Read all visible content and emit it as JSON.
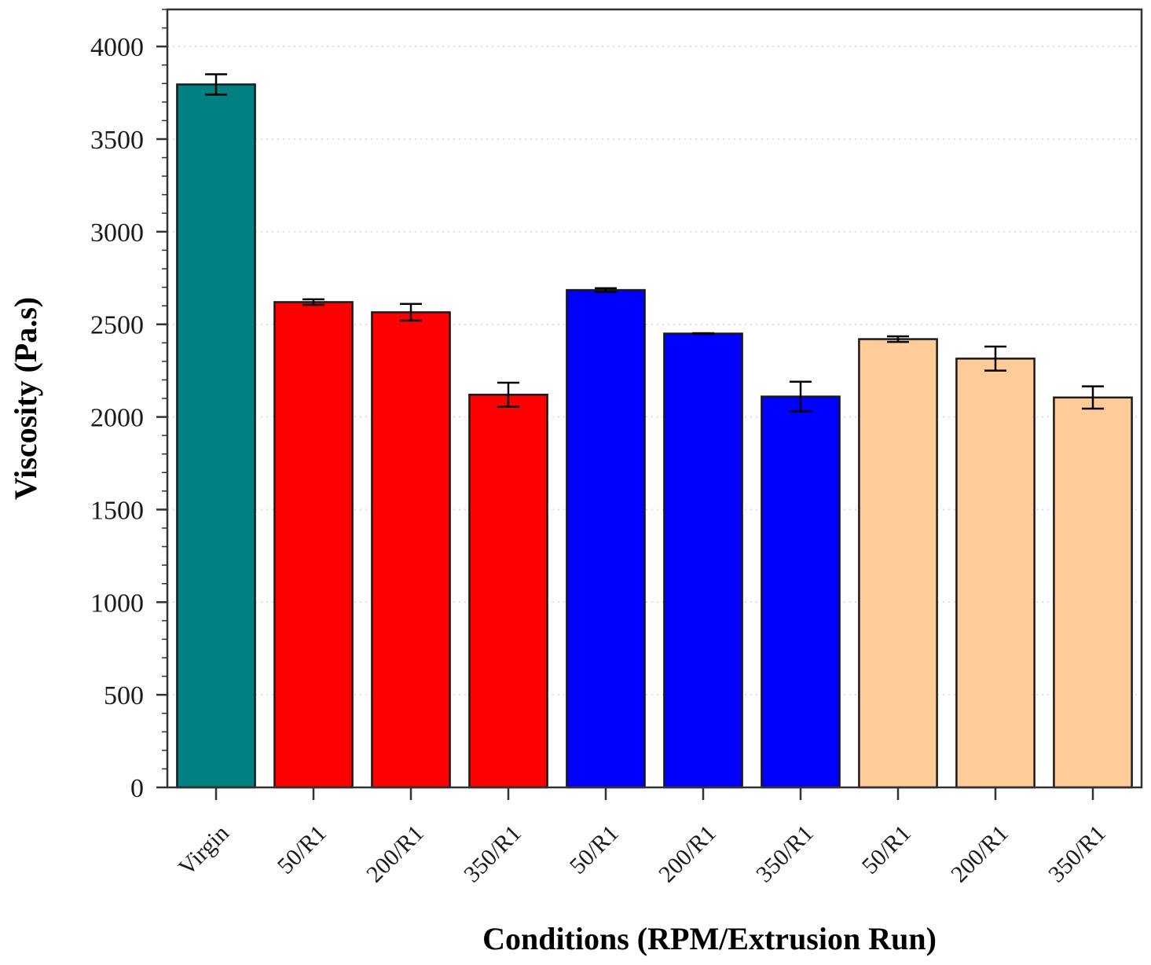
{
  "chart_data": {
    "type": "bar",
    "xlabel": "Conditions (RPM/Extrusion Run)",
    "ylabel": "Viscosity (Pa.s)",
    "ylim": [
      0,
      4200
    ],
    "yticks": [
      0,
      500,
      1000,
      1500,
      2000,
      2500,
      3000,
      3500,
      4000
    ],
    "grid": "horizontal-dotted",
    "categories": [
      "Virgin",
      "50/R1",
      "200/R1",
      "350/R1",
      "50/R1",
      "200/R1",
      "350/R1",
      "50/R1",
      "200/R1",
      "350/R1"
    ],
    "values": [
      3795,
      2620,
      2565,
      2120,
      2685,
      2450,
      2110,
      2420,
      2315,
      2105
    ],
    "errors": [
      55,
      15,
      45,
      65,
      10,
      2,
      80,
      15,
      65,
      60
    ],
    "colors": [
      "#008080",
      "#ff0000",
      "#ff0000",
      "#ff0000",
      "#0000ff",
      "#0000ff",
      "#0000ff",
      "#ffcc99",
      "#ffcc99",
      "#ffcc99"
    ]
  }
}
